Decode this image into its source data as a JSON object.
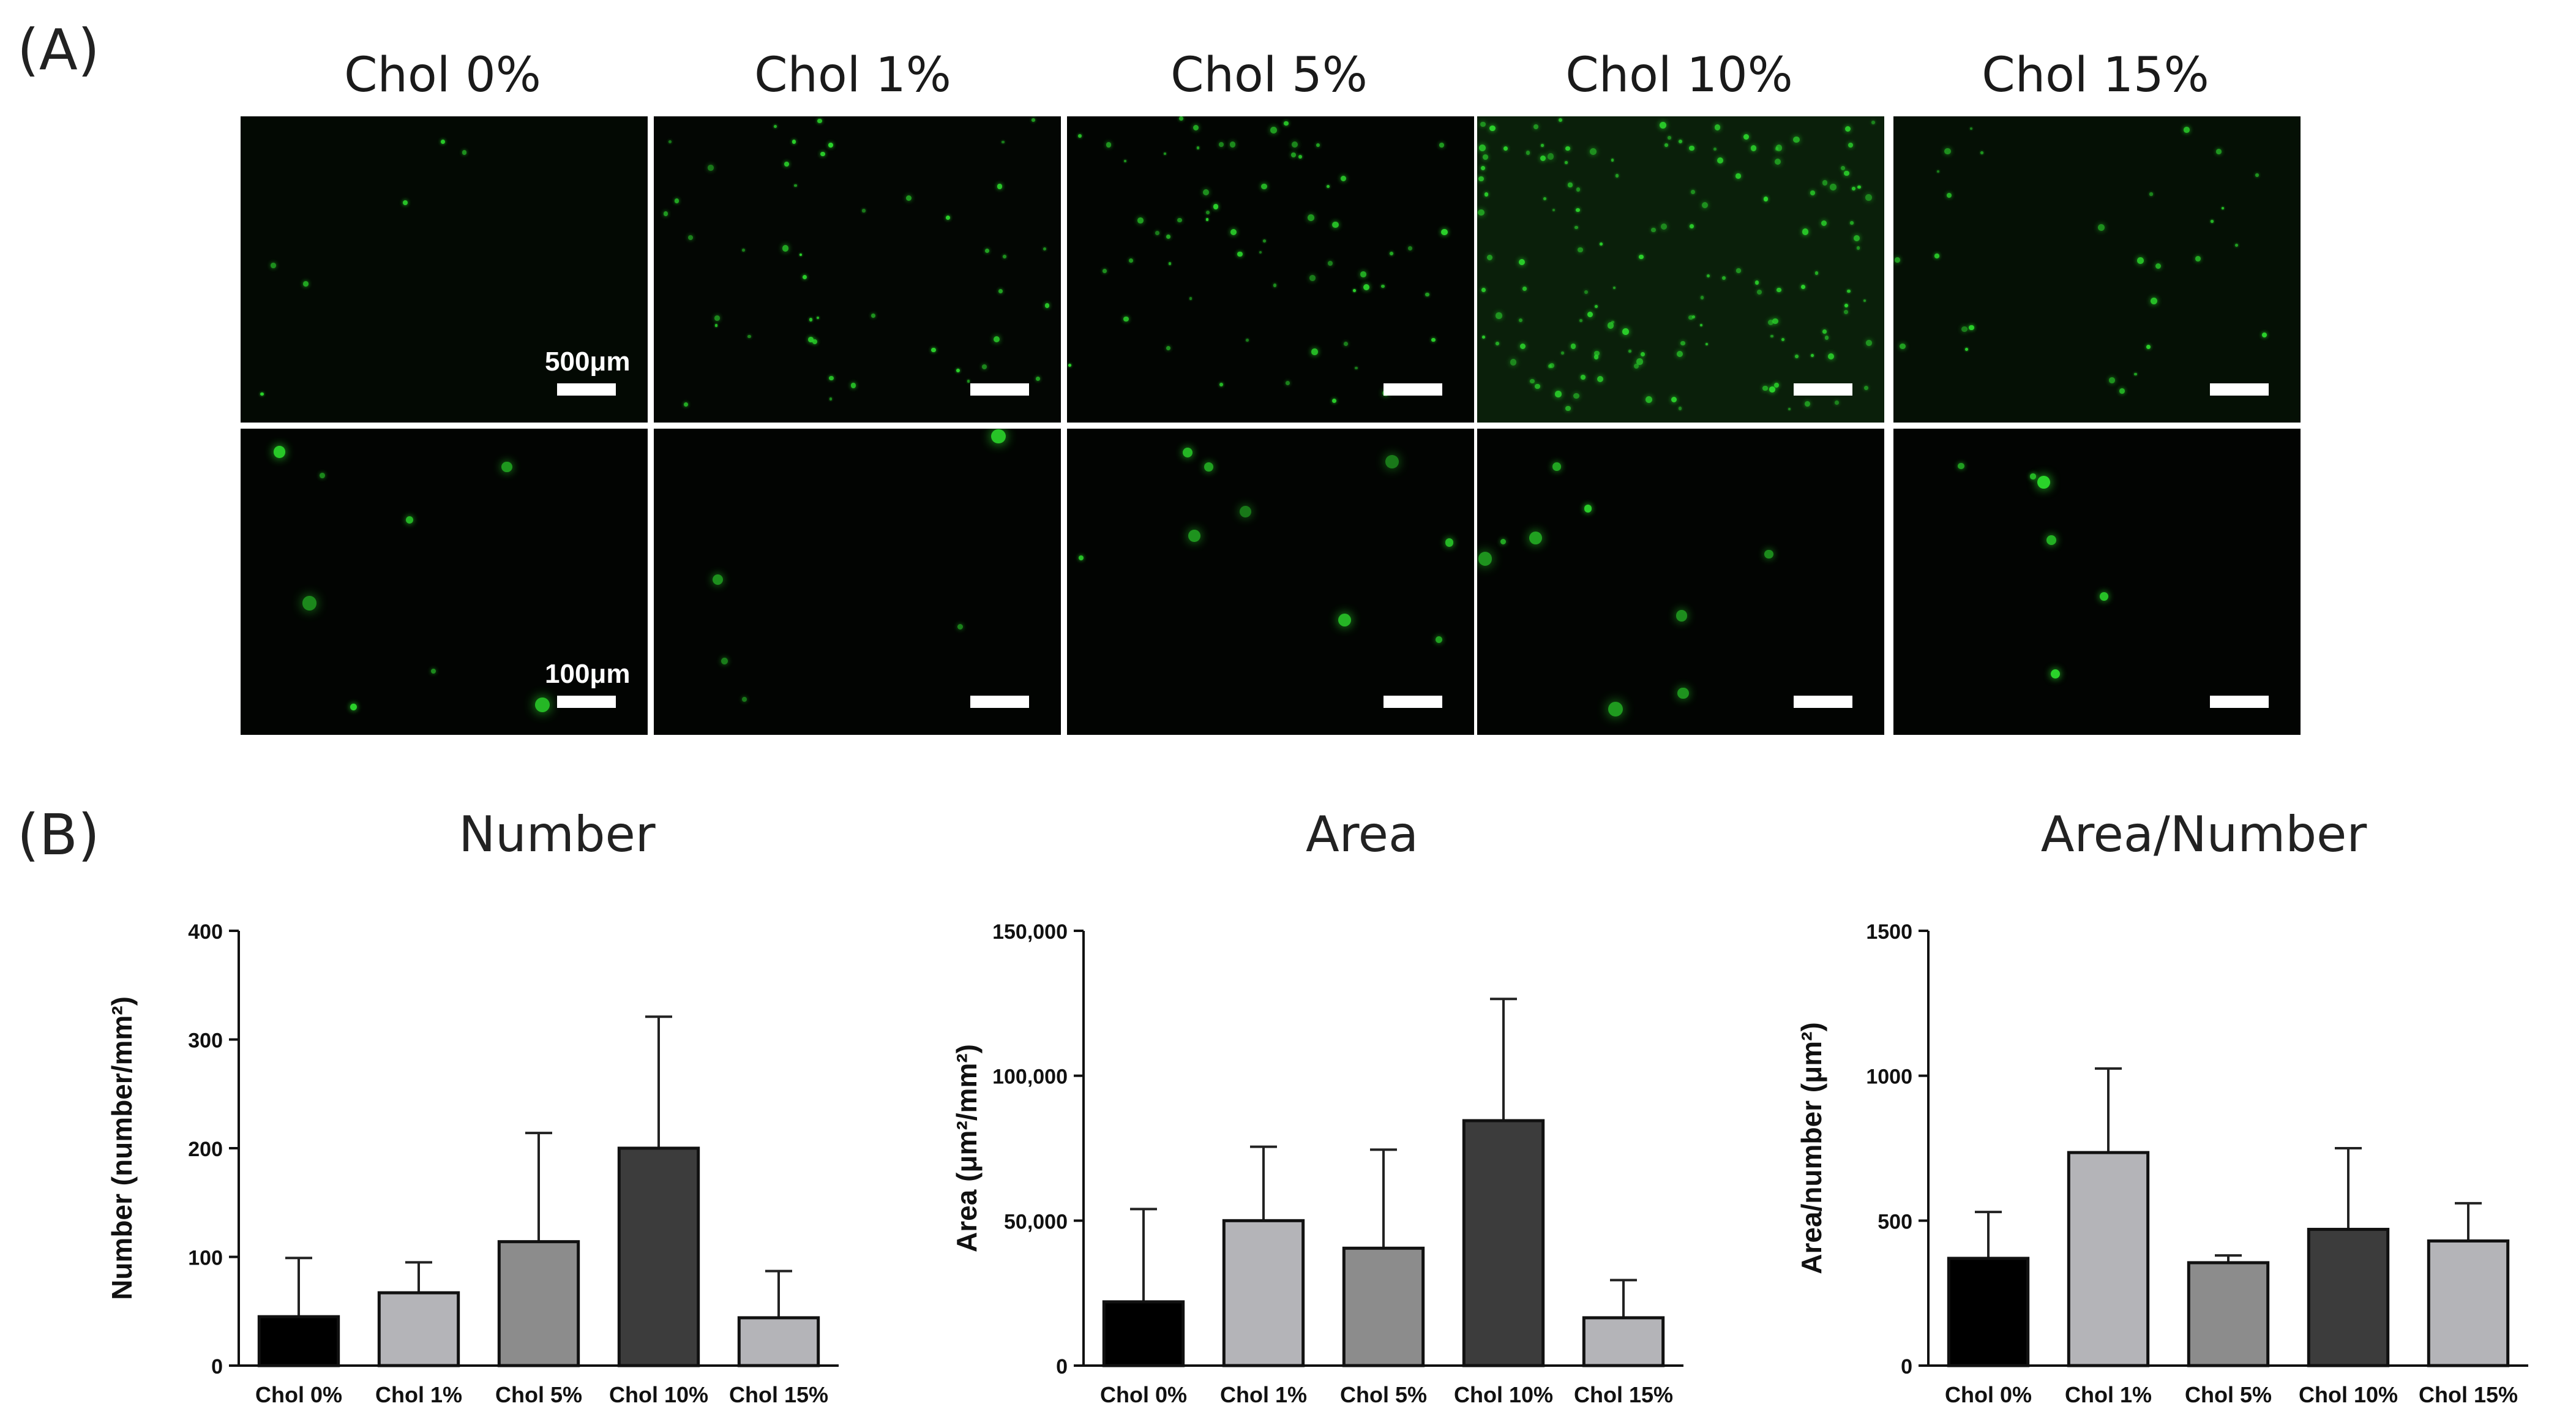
{
  "figure": {
    "panel_a_label": "(A)",
    "panel_b_label": "(B)",
    "conditions": [
      "Chol 0%",
      "Chol 1%",
      "Chol 5%",
      "Chol 10%",
      "Chol 15%"
    ],
    "scalebar_top": "500μm",
    "scalebar_bottom": "100μm",
    "colors": {
      "fluorescence": "#2bd42b",
      "background": "#000000"
    }
  },
  "chart_data": [
    {
      "type": "bar",
      "title": "Number",
      "ylabel": "Number (number/mm²)",
      "categories": [
        "Chol 0%",
        "Chol 1%",
        "Chol 5%",
        "Chol 10%",
        "Chol 15%"
      ],
      "values": [
        45,
        67,
        114,
        200,
        44
      ],
      "errors": [
        54,
        28,
        100,
        121,
        43
      ],
      "ylim": [
        0,
        400
      ],
      "yticks": [
        0,
        100,
        200,
        300,
        400
      ],
      "ytick_labels": [
        "0",
        "100",
        "200",
        "300",
        "400"
      ],
      "bar_colors": [
        "#000000",
        "#b4b4b8",
        "#8c8c8c",
        "#3c3c3c",
        "#b4b4b8"
      ]
    },
    {
      "type": "bar",
      "title": "Area",
      "ylabel": "Area (μm²/mm²)",
      "categories": [
        "Chol 0%",
        "Chol 1%",
        "Chol 5%",
        "Chol 10%",
        "Chol 15%"
      ],
      "values": [
        22000,
        50000,
        40500,
        84500,
        16500
      ],
      "errors": [
        32000,
        25500,
        34000,
        42000,
        13000
      ],
      "ylim": [
        0,
        150000
      ],
      "yticks": [
        0,
        50000,
        100000,
        150000
      ],
      "ytick_labels": [
        "0",
        "50,000",
        "100,000",
        "150,000"
      ],
      "bar_colors": [
        "#000000",
        "#b4b4b8",
        "#8c8c8c",
        "#3c3c3c",
        "#b4b4b8"
      ]
    },
    {
      "type": "bar",
      "title": "Area/Number",
      "ylabel": "Area/number (μm²)",
      "categories": [
        "Chol 0%",
        "Chol 1%",
        "Chol 5%",
        "Chol 10%",
        "Chol 15%"
      ],
      "values": [
        370,
        735,
        355,
        470,
        430
      ],
      "errors": [
        160,
        290,
        25,
        280,
        130
      ],
      "ylim": [
        0,
        1500
      ],
      "yticks": [
        0,
        500,
        1000,
        1500
      ],
      "ytick_labels": [
        "0",
        "500",
        "1000",
        "1500"
      ],
      "bar_colors": [
        "#000000",
        "#b4b4b8",
        "#8c8c8c",
        "#3c3c3c",
        "#b4b4b8"
      ]
    }
  ]
}
